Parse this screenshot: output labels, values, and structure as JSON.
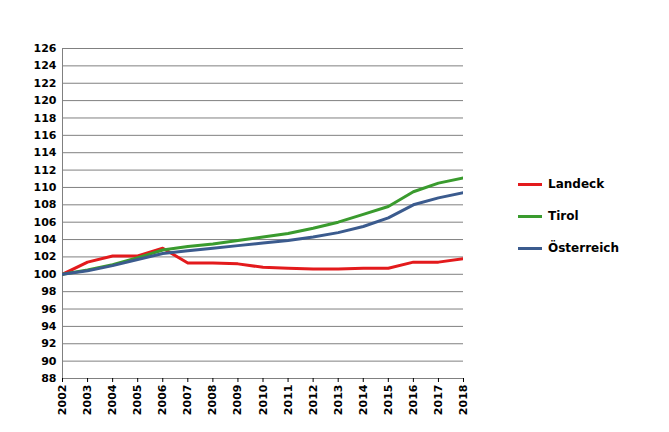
{
  "chart_data": {
    "type": "line",
    "x": [
      2002,
      2003,
      2004,
      2005,
      2006,
      2007,
      2008,
      2009,
      2010,
      2011,
      2012,
      2013,
      2014,
      2015,
      2016,
      2017,
      2018
    ],
    "series": [
      {
        "name": "Landeck",
        "color": "#e31a1c",
        "values": [
          100,
          101.4,
          102.1,
          102.1,
          103.0,
          101.3,
          101.3,
          101.2,
          100.8,
          100.7,
          100.6,
          100.6,
          100.7,
          100.7,
          101.4,
          101.4,
          101.8
        ]
      },
      {
        "name": "Tirol",
        "color": "#3a9b2e",
        "values": [
          100,
          100.5,
          101.1,
          101.9,
          102.8,
          103.2,
          103.5,
          103.9,
          104.3,
          104.7,
          105.3,
          106.0,
          106.9,
          107.8,
          109.5,
          110.5,
          111.1
        ]
      },
      {
        "name": "Österreich",
        "color": "#3b5b8e",
        "values": [
          100,
          100.4,
          101.0,
          101.7,
          102.4,
          102.7,
          103.0,
          103.3,
          103.6,
          103.9,
          104.3,
          104.8,
          105.5,
          106.5,
          108.0,
          108.8,
          109.4
        ]
      }
    ],
    "xlim": [
      2002,
      2018
    ],
    "xticks": [
      2002,
      2003,
      2004,
      2005,
      2006,
      2007,
      2008,
      2009,
      2010,
      2011,
      2012,
      2013,
      2014,
      2015,
      2016,
      2017,
      2018
    ],
    "ylim": [
      88,
      126
    ],
    "yticks": [
      88,
      90,
      92,
      94,
      96,
      98,
      100,
      102,
      104,
      106,
      108,
      110,
      112,
      114,
      116,
      118,
      120,
      122,
      124,
      126
    ],
    "grid": true,
    "legend": "right"
  }
}
